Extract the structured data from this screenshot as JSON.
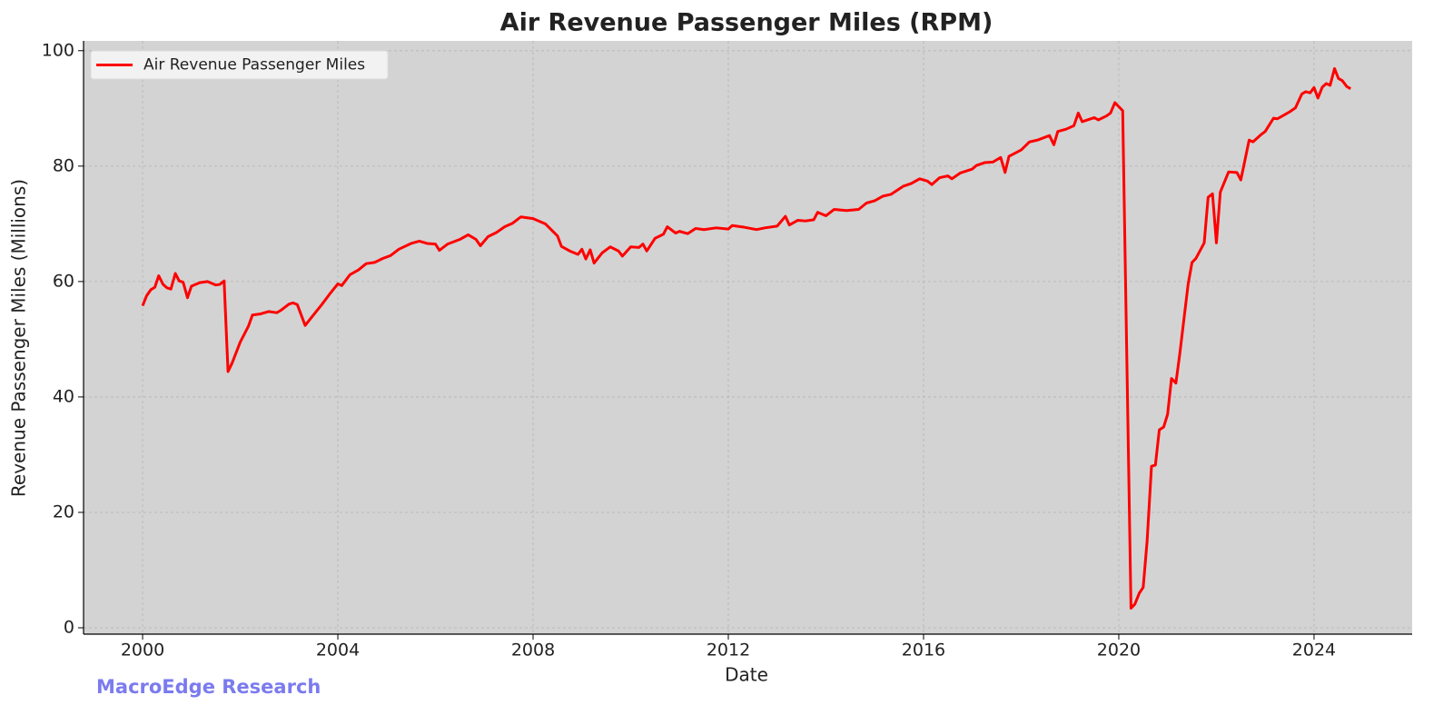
{
  "chart_data": {
    "type": "line",
    "title": "Air Revenue Passenger Miles (RPM)",
    "x_label": "Date",
    "y_label": "Revenue Passenger Miles (Millions)",
    "watermark": "MacroEdge Research",
    "xlim": [
      1998.79,
      2026.01
    ],
    "ylim": [
      -1.1,
      101.7
    ],
    "xticks": [
      2000,
      2004,
      2008,
      2012,
      2016,
      2020,
      2024
    ],
    "yticks": [
      0,
      20,
      40,
      60,
      80,
      100
    ],
    "grid": true,
    "legend": "upper left",
    "x": [
      2000.0,
      2000.08,
      2000.17,
      2000.25,
      2000.33,
      2000.42,
      2000.5,
      2000.58,
      2000.67,
      2000.75,
      2000.83,
      2000.92,
      2001.0,
      2001.17,
      2001.33,
      2001.5,
      2001.58,
      2001.67,
      2001.75,
      2001.83,
      2002.0,
      2002.17,
      2002.25,
      2002.42,
      2002.58,
      2002.75,
      2002.83,
      2003.0,
      2003.08,
      2003.17,
      2003.33,
      2003.5,
      2003.67,
      2003.83,
      2004.0,
      2004.08,
      2004.25,
      2004.42,
      2004.58,
      2004.75,
      2004.92,
      2005.08,
      2005.25,
      2005.5,
      2005.67,
      2005.83,
      2006.0,
      2006.08,
      2006.25,
      2006.5,
      2006.67,
      2006.83,
      2006.92,
      2007.08,
      2007.25,
      2007.42,
      2007.58,
      2007.75,
      2008.0,
      2008.25,
      2008.5,
      2008.58,
      2008.75,
      2008.92,
      2009.0,
      2009.08,
      2009.17,
      2009.25,
      2009.42,
      2009.58,
      2009.75,
      2009.83,
      2010.0,
      2010.17,
      2010.25,
      2010.33,
      2010.5,
      2010.67,
      2010.75,
      2010.92,
      2011.0,
      2011.17,
      2011.33,
      2011.5,
      2011.75,
      2012.0,
      2012.08,
      2012.33,
      2012.58,
      2012.75,
      2013.0,
      2013.17,
      2013.25,
      2013.42,
      2013.58,
      2013.75,
      2013.83,
      2014.0,
      2014.17,
      2014.42,
      2014.67,
      2014.83,
      2015.0,
      2015.17,
      2015.33,
      2015.58,
      2015.75,
      2015.92,
      2016.08,
      2016.17,
      2016.33,
      2016.5,
      2016.58,
      2016.75,
      2017.0,
      2017.08,
      2017.25,
      2017.42,
      2017.58,
      2017.67,
      2017.75,
      2018.0,
      2018.17,
      2018.33,
      2018.58,
      2018.67,
      2018.75,
      2018.92,
      2019.08,
      2019.17,
      2019.25,
      2019.5,
      2019.58,
      2019.75,
      2019.83,
      2019.92,
      2020.08,
      2020.25,
      2020.33,
      2020.42,
      2020.5,
      2020.58,
      2020.67,
      2020.75,
      2020.83,
      2020.92,
      2021.0,
      2021.08,
      2021.17,
      2021.25,
      2021.42,
      2021.5,
      2021.58,
      2021.75,
      2021.83,
      2021.92,
      2022.0,
      2022.08,
      2022.25,
      2022.42,
      2022.5,
      2022.67,
      2022.75,
      2022.92,
      2023.0,
      2023.17,
      2023.25,
      2023.5,
      2023.62,
      2023.75,
      2023.83,
      2023.92,
      2024.0,
      2024.08,
      2024.17,
      2024.25,
      2024.33,
      2024.42,
      2024.5,
      2024.58,
      2024.67,
      2024.75
    ],
    "series": [
      {
        "name": "Air Revenue Passenger Miles",
        "color": "#ff0000",
        "values": [
          55.8,
          57.5,
          58.6,
          59.0,
          61.0,
          59.5,
          58.9,
          58.7,
          61.4,
          60.1,
          59.9,
          57.2,
          59.2,
          59.8,
          60.0,
          59.4,
          59.5,
          60.1,
          44.4,
          45.8,
          49.5,
          52.3,
          54.2,
          54.4,
          54.8,
          54.6,
          55.0,
          56.1,
          56.3,
          56.0,
          52.4,
          54.2,
          56.0,
          57.8,
          59.6,
          59.3,
          61.2,
          62.0,
          63.1,
          63.3,
          64.0,
          64.5,
          65.6,
          66.6,
          67.0,
          66.6,
          66.5,
          65.4,
          66.5,
          67.3,
          68.1,
          67.3,
          66.2,
          67.8,
          68.5,
          69.5,
          70.1,
          71.2,
          70.9,
          70.0,
          67.9,
          66.1,
          65.3,
          64.7,
          65.6,
          63.9,
          65.5,
          63.2,
          65.0,
          66.0,
          65.3,
          64.4,
          66.0,
          65.9,
          66.5,
          65.3,
          67.5,
          68.2,
          69.5,
          68.4,
          68.7,
          68.3,
          69.2,
          69.0,
          69.3,
          69.1,
          69.7,
          69.4,
          69.0,
          69.3,
          69.6,
          71.3,
          69.8,
          70.6,
          70.5,
          70.7,
          72.0,
          71.4,
          72.5,
          72.3,
          72.5,
          73.6,
          74.0,
          74.8,
          75.1,
          76.5,
          77.0,
          77.8,
          77.4,
          76.8,
          78.0,
          78.3,
          77.8,
          78.8,
          79.5,
          80.1,
          80.6,
          80.7,
          81.5,
          78.9,
          81.7,
          82.8,
          84.2,
          84.5,
          85.3,
          83.7,
          86.0,
          86.4,
          87.0,
          89.2,
          87.7,
          88.4,
          88.0,
          88.7,
          89.2,
          91.0,
          89.6,
          3.4,
          4.1,
          6.0,
          7.0,
          15.0,
          28.0,
          28.2,
          34.3,
          34.8,
          37.0,
          43.2,
          42.4,
          47.5,
          59.5,
          63.3,
          64.0,
          66.7,
          74.6,
          75.2,
          66.7,
          75.5,
          79.0,
          78.9,
          77.6,
          84.5,
          84.2,
          85.5,
          86.0,
          88.3,
          88.2,
          89.4,
          90.1,
          92.5,
          92.9,
          92.7,
          93.6,
          91.8,
          93.7,
          94.3,
          94.0,
          96.9,
          95.2,
          94.8,
          93.8,
          93.4
        ]
      }
    ]
  }
}
